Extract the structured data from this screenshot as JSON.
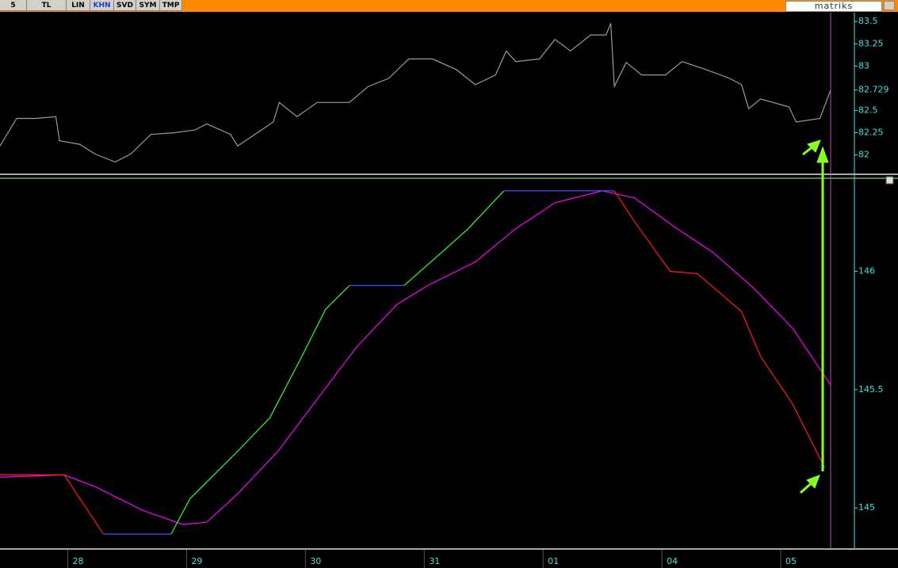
{
  "toolbar": {
    "buttons": [
      "5",
      "TL",
      "LIN",
      "KHN",
      "SVD",
      "SYM",
      "TMP"
    ],
    "logo": "matriks"
  },
  "chart_data": [
    {
      "type": "line",
      "xlim": [
        -0.57,
        6.62
      ],
      "ylim": [
        81.8,
        83.6
      ],
      "yticks": [
        82,
        82.25,
        82.5,
        82.729,
        83,
        83.25,
        83.5
      ],
      "series": [
        {
          "color": "#9a9a9a",
          "x": [
            -0.57,
            -0.43,
            -0.27,
            -0.1,
            -0.07,
            0.1,
            0.23,
            0.4,
            0.53,
            0.7,
            0.9,
            1.07,
            1.17,
            1.37,
            1.43,
            1.63,
            1.73,
            1.78,
            1.93,
            2.1,
            2.37,
            2.53,
            2.7,
            2.87,
            3.07,
            3.27,
            3.43,
            3.6,
            3.69,
            3.77,
            3.97,
            4.1,
            4.23,
            4.4,
            4.53,
            4.57,
            4.6,
            4.7,
            4.83,
            5.03,
            5.17,
            5.37,
            5.57,
            5.67,
            5.73,
            5.83,
            6.07,
            6.13,
            6.33,
            6.42
          ],
          "values": [
            82.1,
            82.41,
            82.41,
            82.43,
            82.16,
            82.12,
            82.01,
            81.92,
            82.01,
            82.23,
            82.25,
            82.28,
            82.35,
            82.23,
            82.1,
            82.28,
            82.37,
            82.59,
            82.43,
            82.59,
            82.59,
            82.77,
            82.86,
            83.08,
            83.08,
            82.96,
            82.79,
            82.9,
            83.17,
            83.05,
            83.08,
            83.3,
            83.17,
            83.35,
            83.35,
            83.48,
            82.77,
            83.04,
            82.9,
            82.9,
            83.05,
            82.96,
            82.86,
            82.79,
            82.52,
            82.63,
            82.54,
            82.37,
            82.41,
            82.729
          ]
        }
      ]
    },
    {
      "type": "line",
      "xlim": [
        -0.57,
        6.62
      ],
      "ylim": [
        144.83,
        146.39
      ],
      "yticks": [
        145,
        145.5,
        146
      ],
      "xticks": [
        {
          "value": 0,
          "label": "28"
        },
        {
          "value": 1,
          "label": "29"
        },
        {
          "value": 2,
          "label": "30"
        },
        {
          "value": 3,
          "label": "31"
        },
        {
          "value": 4,
          "label": "01"
        },
        {
          "value": 5,
          "label": "04"
        },
        {
          "value": 6,
          "label": "05"
        }
      ],
      "series": [
        {
          "color": "#ff00ff",
          "x": [
            -0.57,
            -0.03,
            0.23,
            0.63,
            0.97,
            1.17,
            1.43,
            1.77,
            2.1,
            2.43,
            2.77,
            3.03,
            3.43,
            3.77,
            4.1,
            4.5,
            4.77,
            5.1,
            5.43,
            5.77,
            6.1,
            6.42
          ],
          "values": [
            145.13,
            145.14,
            145.09,
            144.99,
            144.93,
            144.94,
            145.06,
            145.24,
            145.46,
            145.68,
            145.86,
            145.94,
            146.04,
            146.18,
            146.29,
            146.34,
            146.31,
            146.19,
            146.08,
            145.93,
            145.76,
            145.52
          ]
        },
        {
          "color": "#ff1a1a",
          "x": [
            -0.57,
            -0.03,
            0.3
          ],
          "values": [
            145.14,
            145.14,
            144.89
          ]
        },
        {
          "color": "#4a4aff",
          "x": [
            0.3,
            0.87
          ],
          "values": [
            144.89,
            144.89
          ]
        },
        {
          "color": "#33ff33",
          "x": [
            0.87,
            1.03,
            1.43,
            1.7,
            1.97,
            2.17,
            2.37
          ],
          "values": [
            144.89,
            145.04,
            145.24,
            145.38,
            145.64,
            145.84,
            145.94
          ]
        },
        {
          "color": "#4a4aff",
          "x": [
            2.37,
            2.83
          ],
          "values": [
            145.94,
            145.94
          ]
        },
        {
          "color": "#33ff33",
          "x": [
            2.83,
            3.17,
            3.37,
            3.67
          ],
          "values": [
            145.94,
            146.09,
            146.18,
            146.34
          ]
        },
        {
          "color": "#4a4aff",
          "x": [
            3.67,
            4.6
          ],
          "values": [
            146.34,
            146.34
          ]
        },
        {
          "color": "#ff1a1a",
          "x": [
            4.6,
            4.77,
            5.07,
            5.3,
            5.67,
            5.83,
            6.1,
            6.37
          ],
          "values": [
            146.34,
            146.21,
            146.0,
            145.99,
            145.83,
            145.64,
            145.44,
            145.17
          ]
        }
      ]
    }
  ]
}
